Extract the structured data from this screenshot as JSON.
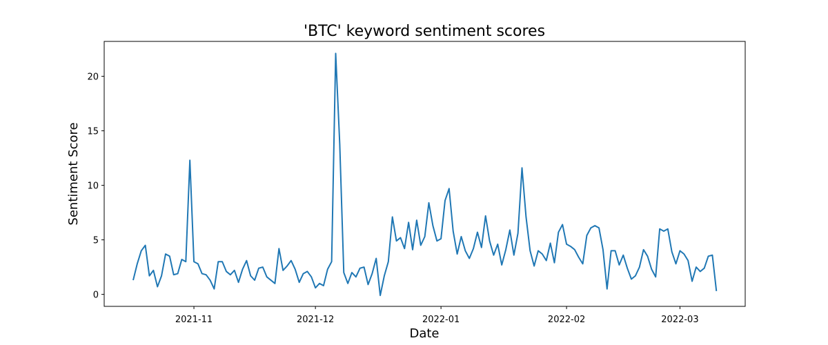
{
  "chart_data": {
    "type": "line",
    "title": "'BTC' keyword sentiment scores",
    "x_label": "Date",
    "y_label": "Sentiment Score",
    "categories": [
      null,
      null,
      null,
      null,
      null,
      null,
      null,
      null,
      null,
      null,
      null,
      null,
      null,
      null,
      null,
      "2021-11",
      null,
      null,
      null,
      null,
      null,
      null,
      null,
      null,
      null,
      null,
      null,
      null,
      null,
      null,
      null,
      null,
      null,
      null,
      null,
      null,
      null,
      null,
      null,
      null,
      null,
      null,
      null,
      null,
      null,
      "2021-12",
      null,
      null,
      null,
      null,
      null,
      null,
      null,
      null,
      null,
      null,
      null,
      null,
      null,
      null,
      null,
      null,
      null,
      null,
      null,
      null,
      null,
      null,
      null,
      null,
      null,
      null,
      null,
      null,
      null,
      null,
      "2022-01",
      null,
      null,
      null,
      null,
      null,
      null,
      null,
      null,
      null,
      null,
      null,
      null,
      null,
      null,
      null,
      null,
      null,
      null,
      null,
      null,
      null,
      null,
      null,
      null,
      null,
      null,
      null,
      null,
      null,
      null,
      "2022-02",
      null,
      null,
      null,
      null,
      null,
      null,
      null,
      null,
      null,
      null,
      null,
      null,
      null,
      null,
      null,
      null,
      null,
      null,
      null,
      null,
      null,
      null,
      null,
      null,
      null,
      null,
      null,
      "2022-03",
      null,
      null,
      null,
      null,
      null,
      null,
      null,
      null,
      null
    ],
    "values": [
      1.3,
      2.8,
      4.0,
      4.5,
      1.7,
      2.2,
      0.7,
      1.7,
      3.7,
      3.5,
      1.8,
      1.9,
      3.2,
      3.0,
      12.3,
      3.0,
      2.8,
      1.9,
      1.8,
      1.3,
      0.5,
      3.0,
      3.0,
      2.1,
      1.8,
      2.2,
      1.1,
      2.3,
      3.1,
      1.7,
      1.3,
      2.4,
      2.5,
      1.6,
      1.3,
      1.0,
      4.2,
      2.2,
      2.6,
      3.1,
      2.3,
      1.1,
      1.9,
      2.1,
      1.6,
      0.6,
      1.0,
      0.8,
      2.3,
      3.0,
      22.1,
      13.8,
      2.0,
      1.0,
      2.0,
      1.6,
      2.4,
      2.5,
      0.9,
      1.9,
      3.3,
      -0.1,
      1.7,
      3.0,
      7.1,
      4.9,
      5.2,
      4.2,
      6.6,
      4.1,
      6.8,
      4.5,
      5.3,
      8.4,
      6.3,
      4.9,
      5.1,
      8.6,
      9.7,
      5.8,
      3.7,
      5.3,
      4.0,
      3.3,
      4.2,
      5.7,
      4.3,
      7.2,
      4.9,
      3.6,
      4.6,
      2.7,
      4.1,
      5.9,
      3.6,
      5.6,
      11.6,
      7.1,
      4.0,
      2.6,
      4.0,
      3.7,
      3.1,
      4.7,
      2.9,
      5.7,
      6.4,
      4.6,
      4.4,
      4.1,
      3.4,
      2.8,
      5.4,
      6.1,
      6.3,
      6.1,
      4.1,
      0.5,
      4.0,
      4.0,
      2.7,
      3.6,
      2.4,
      1.4,
      1.7,
      2.5,
      4.1,
      3.5,
      2.3,
      1.6,
      6.0,
      5.8,
      6.0,
      3.9,
      2.8,
      4.0,
      3.7,
      3.1,
      1.2,
      2.5,
      2.1,
      2.4,
      3.5,
      3.6,
      0.3
    ],
    "color": "#1f77b4",
    "ylim": [
      -1.1,
      23.2
    ],
    "yticks": [
      0,
      5,
      10,
      15,
      20
    ]
  }
}
